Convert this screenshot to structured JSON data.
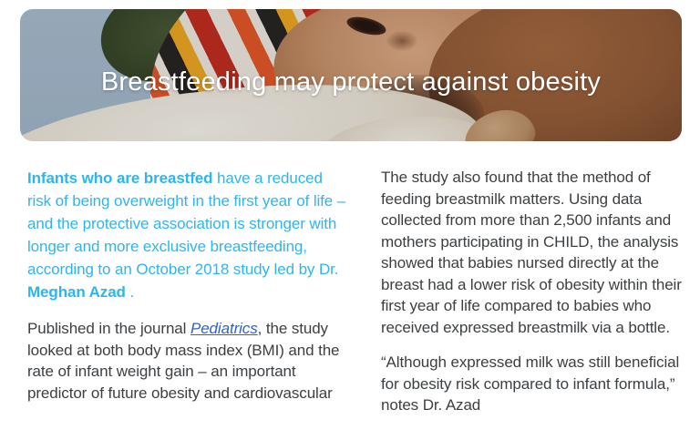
{
  "hero": {
    "title": "Breastfeeding may protect against obesity",
    "image_description": "newborn in striped knit hat breastfeeding, wrapped in white fleece blanket",
    "colors": {
      "background_blue_gray": "#a6bac8",
      "hat_green": "#33411f",
      "hat_orange": "#e2531f",
      "hat_black": "#24201c",
      "hat_yellow": "#eda41c",
      "hat_red": "#c02818",
      "skin_baby": "#c68f64",
      "skin_mother": "#905730",
      "blanket_white": "#f4efe5",
      "title_text": "#ffffff"
    }
  },
  "article": {
    "left_column": {
      "para1_bold_lead": "Infants who are breastfed",
      "para1_text": " have a reduced risk of being overweight in the first year of life – and the protective association is stronger with longer and more exclusive breastfeeding, according to an October 2018 study led by Dr. ",
      "para1_bold_name": "Meghan Azad",
      "para1_tail": " .",
      "para2_text_a": "Published in the journal ",
      "para2_link": "Pediatrics",
      "para2_text_b": ", the study looked at both body mass index (BMI) and the rate of infant weight gain – an important predictor of future obesity and cardiovascular"
    },
    "right_column": {
      "para1": "The study also found that the method of feeding breastmilk matters. Using data collected from more than 2,500 infants and mothers participating in CHILD, the analysis showed that babies nursed directly at the breast had a lower risk of obesity within their first year of life compared to babies who received expressed breastmilk via a bottle.",
      "para2": "“Although expressed milk was still beneficial for obesity risk compared to infant formula,” notes Dr. Azad"
    }
  },
  "colors": {
    "accent_cyan": "#2db6ee",
    "link_blue": "#2e62c9",
    "body_text": "#3c4043",
    "page_background": "#ffffff"
  }
}
